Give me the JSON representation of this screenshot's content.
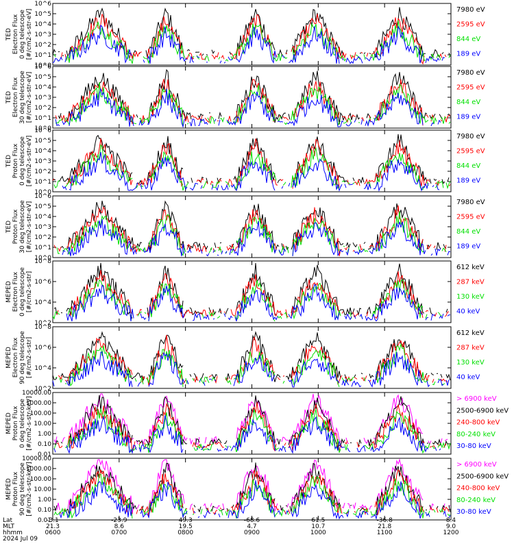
{
  "colors": {
    "black": "#000000",
    "red": "#ff0000",
    "green": "#00e000",
    "blue": "#0000ff",
    "magenta": "#ff00ff"
  },
  "x_axis": {
    "row_labels": [
      "Lat",
      "MLT",
      "hhmm",
      "2024 Jul 09"
    ],
    "lat": [
      "-3.1",
      "-23.9",
      "49.3",
      "-68.6",
      "61.5",
      "-36.8",
      "8.4"
    ],
    "mlt": [
      "21.3",
      "8.6",
      "19.5",
      "4.7",
      "10.7",
      "21.8",
      "9.0"
    ],
    "hhmm": [
      "0600",
      "0700",
      "0800",
      "0900",
      "1000",
      "1100",
      "1200"
    ]
  },
  "chart_data": [
    {
      "type": "line",
      "ylabel": [
        "TED",
        "Electron Flux",
        "0 deg telescope",
        "[#/cm2-s-str-eV]"
      ],
      "yscale": "log",
      "ytick_labels": [
        "10^0",
        "10^1",
        "10^2",
        "10^3",
        "10^4",
        "10^5",
        "10^6"
      ],
      "series": [
        {
          "name": "7980 eV",
          "color": "#000000"
        },
        {
          "name": "2595 eV",
          "color": "#ff0000"
        },
        {
          "name": "844 eV",
          "color": "#00e000"
        },
        {
          "name": "189 eV",
          "color": "#0000ff"
        }
      ]
    },
    {
      "type": "line",
      "ylabel": [
        "TED",
        "Electron Flux",
        "30 deg telescope",
        "[#/cm2-s-str-eV]"
      ],
      "yscale": "log",
      "ytick_labels": [
        "10^0",
        "10^1",
        "10^2",
        "10^3",
        "10^4",
        "10^5",
        "10^6"
      ],
      "series": [
        {
          "name": "7980 eV",
          "color": "#000000"
        },
        {
          "name": "2595 eV",
          "color": "#ff0000"
        },
        {
          "name": "844 eV",
          "color": "#00e000"
        },
        {
          "name": "189 eV",
          "color": "#0000ff"
        }
      ]
    },
    {
      "type": "line",
      "ylabel": [
        "TED",
        "Proton Flux",
        "0 deg telescope",
        "[#/cm2-s-str-eV]"
      ],
      "yscale": "log",
      "ytick_labels": [
        "10^0",
        "10^1",
        "10^2",
        "10^3",
        "10^4",
        "10^5",
        "10^6"
      ],
      "series": [
        {
          "name": "7980 eV",
          "color": "#000000"
        },
        {
          "name": "2595 eV",
          "color": "#ff0000"
        },
        {
          "name": "844 eV",
          "color": "#00e000"
        },
        {
          "name": "189 eV",
          "color": "#0000ff"
        }
      ]
    },
    {
      "type": "line",
      "ylabel": [
        "TED",
        "Proton Flux",
        "30 deg telescope",
        "[#/cm2-s-str-eV]"
      ],
      "yscale": "log",
      "ytick_labels": [
        "10^0",
        "10^1",
        "10^2",
        "10^3",
        "10^4",
        "10^5",
        "10^6"
      ],
      "series": [
        {
          "name": "7980 eV",
          "color": "#000000"
        },
        {
          "name": "2595 eV",
          "color": "#ff0000"
        },
        {
          "name": "844 eV",
          "color": "#00e000"
        },
        {
          "name": "189 eV",
          "color": "#0000ff"
        }
      ]
    },
    {
      "type": "line",
      "ylabel": [
        "MEPED",
        "Electron Flux",
        "0 deg telescope",
        "[#/cm2-s-str]"
      ],
      "yscale": "log",
      "ytick_labels": [
        "10^2",
        "10^4",
        "10^6",
        "10^8"
      ],
      "series": [
        {
          "name": "612 keV",
          "color": "#000000"
        },
        {
          "name": "287 keV",
          "color": "#ff0000"
        },
        {
          "name": "130 keV",
          "color": "#00e000"
        },
        {
          "name": "40 keV",
          "color": "#0000ff"
        }
      ]
    },
    {
      "type": "line",
      "ylabel": [
        "MEPED",
        "Electron Flux",
        "90 deg telescope",
        "[#/cm2-s-str]"
      ],
      "yscale": "log",
      "ytick_labels": [
        "10^2",
        "10^4",
        "10^6",
        "10^8"
      ],
      "series": [
        {
          "name": "612 keV",
          "color": "#000000"
        },
        {
          "name": "287 keV",
          "color": "#ff0000"
        },
        {
          "name": "130 keV",
          "color": "#00e000"
        },
        {
          "name": "40 keV",
          "color": "#0000ff"
        }
      ]
    },
    {
      "type": "line",
      "ylabel": [
        "MEPED",
        "Proton Flux",
        "0 deg telescope",
        "[#/cm2-s-str-keV]"
      ],
      "yscale": "log",
      "ytick_labels": [
        "0.01",
        "0.10",
        "1.00",
        "10.00",
        "100.00",
        "1000.00",
        "10000.00"
      ],
      "series": [
        {
          "name": "> 6900 keV",
          "color": "#ff00ff"
        },
        {
          "name": "2500-6900 keV",
          "color": "#000000"
        },
        {
          "name": "240-800 keV",
          "color": "#ff0000"
        },
        {
          "name": "80-240 keV",
          "color": "#00e000"
        },
        {
          "name": "30-80 keV",
          "color": "#0000ff"
        }
      ]
    },
    {
      "type": "line",
      "ylabel": [
        "MEPED",
        "Proton Flux",
        "90 deg telescope",
        "[#/cm2-s-str-keV]"
      ],
      "yscale": "log",
      "ytick_labels": [
        "0.01",
        "0.10",
        "1.00",
        "10.00",
        "100.00",
        "1000.00",
        "10000.00"
      ],
      "series": [
        {
          "name": "> 6900 keV",
          "color": "#ff00ff"
        },
        {
          "name": "2500-6900 keV",
          "color": "#000000"
        },
        {
          "name": "240-800 keV",
          "color": "#ff0000"
        },
        {
          "name": "80-240 keV",
          "color": "#00e000"
        },
        {
          "name": "30-80 keV",
          "color": "#0000ff"
        }
      ]
    }
  ]
}
